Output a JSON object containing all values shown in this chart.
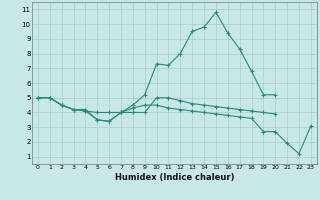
{
  "xlabel": "Humidex (Indice chaleur)",
  "x": [
    0,
    1,
    2,
    3,
    4,
    5,
    6,
    7,
    8,
    9,
    10,
    11,
    12,
    13,
    14,
    15,
    16,
    17,
    18,
    19,
    20,
    21,
    22,
    23
  ],
  "line_peak": [
    5.0,
    5.0,
    4.5,
    4.2,
    4.2,
    3.5,
    3.4,
    4.0,
    4.5,
    5.2,
    7.3,
    7.2,
    8.0,
    9.5,
    9.8,
    10.8,
    9.4,
    8.3,
    6.8,
    5.2,
    5.2,
    null,
    null,
    null
  ],
  "line_flat": [
    5.0,
    5.0,
    4.5,
    4.2,
    4.1,
    4.0,
    4.0,
    4.0,
    4.0,
    4.0,
    5.0,
    5.0,
    4.8,
    4.6,
    4.5,
    4.4,
    4.3,
    4.2,
    4.1,
    4.0,
    3.9,
    null,
    null,
    null
  ],
  "line_low": [
    5.0,
    5.0,
    4.5,
    4.2,
    4.1,
    3.5,
    3.4,
    4.0,
    4.3,
    4.5,
    4.5,
    4.3,
    4.2,
    4.1,
    4.0,
    3.9,
    3.8,
    3.7,
    3.6,
    2.7,
    2.7,
    1.9,
    1.2,
    3.1
  ],
  "color": "#2a8a7a",
  "bg_color": "#c8e8e8",
  "grid_color": "#a8cccc",
  "ymin": 1,
  "ymax": 11,
  "xmin": 0,
  "xmax": 23
}
